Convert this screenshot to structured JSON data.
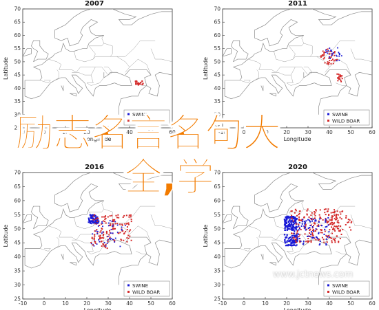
{
  "panels": [
    {
      "title": "2007",
      "legend": [
        "SWINE",
        "WILD BOAR"
      ],
      "density": "low"
    },
    {
      "title": "2011",
      "legend": [
        "SWINE",
        "WILD BOAR"
      ],
      "density": "medium"
    },
    {
      "title": "2016",
      "legend": [
        "SWINE",
        "WILD BOAR"
      ],
      "density": "high"
    },
    {
      "title": "2020",
      "legend": [
        "SWINE",
        "WILD BOAR"
      ],
      "density": "very-high"
    }
  ],
  "axes": {
    "xlabel": "Longitude",
    "ylabel": "Latitude",
    "xticks": [
      "-10",
      "0",
      "10",
      "20",
      "30",
      "40",
      "50",
      "60"
    ],
    "yticks": [
      "70",
      "65",
      "60",
      "55",
      "50",
      "45",
      "40",
      "35",
      "30",
      "25"
    ]
  },
  "colors": {
    "swine": "#1a1ad6",
    "wild_boar": "#d42a2a",
    "overlay": "#f27b00"
  },
  "overlay": {
    "line1": "励志名言名句大",
    "line2": "全,学"
  },
  "watermark": "www.jctnews.com"
}
